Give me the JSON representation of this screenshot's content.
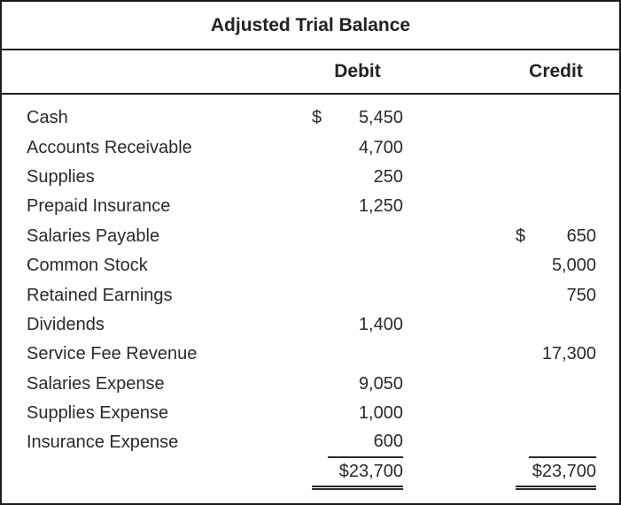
{
  "table": {
    "title": "Adjusted Trial Balance",
    "columns": {
      "debit": "Debit",
      "credit": "Credit"
    }
  },
  "rows": [
    {
      "label": "Cash",
      "debit_dollar": "$",
      "debit": "5,450",
      "credit_dollar": "",
      "credit": ""
    },
    {
      "label": "Accounts Receivable",
      "debit_dollar": "",
      "debit": "4,700",
      "credit_dollar": "",
      "credit": ""
    },
    {
      "label": "Supplies",
      "debit_dollar": "",
      "debit": "250",
      "credit_dollar": "",
      "credit": ""
    },
    {
      "label": "Prepaid Insurance",
      "debit_dollar": "",
      "debit": "1,250",
      "credit_dollar": "",
      "credit": ""
    },
    {
      "label": "Salaries Payable",
      "debit_dollar": "",
      "debit": "",
      "credit_dollar": "$",
      "credit": "650"
    },
    {
      "label": "Common Stock",
      "debit_dollar": "",
      "debit": "",
      "credit_dollar": "",
      "credit": "5,000"
    },
    {
      "label": "Retained Earnings",
      "debit_dollar": "",
      "debit": "",
      "credit_dollar": "",
      "credit": "750"
    },
    {
      "label": "Dividends",
      "debit_dollar": "",
      "debit": "1,400",
      "credit_dollar": "",
      "credit": ""
    },
    {
      "label": "Service Fee Revenue",
      "debit_dollar": "",
      "debit": "",
      "credit_dollar": "",
      "credit": "17,300"
    },
    {
      "label": "Salaries Expense",
      "debit_dollar": "",
      "debit": "9,050",
      "credit_dollar": "",
      "credit": ""
    },
    {
      "label": "Supplies Expense",
      "debit_dollar": "",
      "debit": "1,000",
      "credit_dollar": "",
      "credit": ""
    },
    {
      "label": "Insurance Expense",
      "debit_dollar": "",
      "debit": "600",
      "credit_dollar": "",
      "credit": ""
    }
  ],
  "totals": {
    "debit": "$23,700",
    "credit": "$23,700"
  },
  "colors": {
    "text": "#2a2a2a",
    "border": "#1c1c1c",
    "background": "#ffffff"
  }
}
